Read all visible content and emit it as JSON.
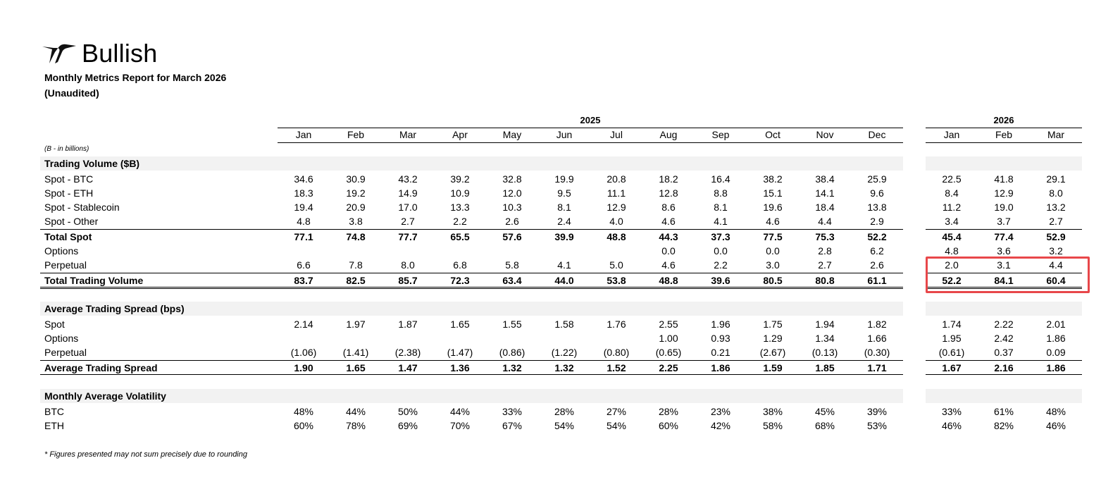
{
  "brand": {
    "name": "Bullish"
  },
  "report": {
    "title": "Monthly Metrics Report for March 2026",
    "subtitle": "(Unaudited)",
    "units_note": "(B - in billions)",
    "footnote": "* Figures presented may not sum precisely due to rounding"
  },
  "years": {
    "y2025": "2025",
    "y2026": "2026"
  },
  "months_2025": [
    "Jan",
    "Feb",
    "Mar",
    "Apr",
    "May",
    "Jun",
    "Jul",
    "Aug",
    "Sep",
    "Oct",
    "Nov",
    "Dec"
  ],
  "months_2026": [
    "Jan",
    "Feb",
    "Mar"
  ],
  "sections": {
    "trading_volume": "Trading Volume ($B)",
    "spread": "Average Trading Spread (bps)",
    "volatility": "Monthly Average Volatility"
  },
  "rows": {
    "spot_btc": {
      "label": "Spot - BTC",
      "v2025": [
        "34.6",
        "30.9",
        "43.2",
        "39.2",
        "32.8",
        "19.9",
        "20.8",
        "18.2",
        "16.4",
        "38.2",
        "38.4",
        "25.9"
      ],
      "v2026": [
        "22.5",
        "41.8",
        "29.1"
      ]
    },
    "spot_eth": {
      "label": "Spot - ETH",
      "v2025": [
        "18.3",
        "19.2",
        "14.9",
        "10.9",
        "12.0",
        "9.5",
        "11.1",
        "12.8",
        "8.8",
        "15.1",
        "14.1",
        "9.6"
      ],
      "v2026": [
        "8.4",
        "12.9",
        "8.0"
      ]
    },
    "spot_stable": {
      "label": "Spot - Stablecoin",
      "v2025": [
        "19.4",
        "20.9",
        "17.0",
        "13.3",
        "10.3",
        "8.1",
        "12.9",
        "8.6",
        "8.1",
        "19.6",
        "18.4",
        "13.8"
      ],
      "v2026": [
        "11.2",
        "19.0",
        "13.2"
      ]
    },
    "spot_other": {
      "label": "Spot - Other",
      "v2025": [
        "4.8",
        "3.8",
        "2.7",
        "2.2",
        "2.6",
        "2.4",
        "4.0",
        "4.6",
        "4.1",
        "4.6",
        "4.4",
        "2.9"
      ],
      "v2026": [
        "3.4",
        "3.7",
        "2.7"
      ]
    },
    "total_spot": {
      "label": "Total Spot",
      "v2025": [
        "77.1",
        "74.8",
        "77.7",
        "65.5",
        "57.6",
        "39.9",
        "48.8",
        "44.3",
        "37.3",
        "77.5",
        "75.3",
        "52.2"
      ],
      "v2026": [
        "45.4",
        "77.4",
        "52.9"
      ]
    },
    "options_vol": {
      "label": "Options",
      "v2025": [
        "",
        "",
        "",
        "",
        "",
        "",
        "",
        "0.0",
        "0.0",
        "0.0",
        "2.8",
        "6.2"
      ],
      "v2026": [
        "4.8",
        "3.6",
        "3.2"
      ]
    },
    "perp_vol": {
      "label": "Perpetual",
      "v2025": [
        "6.6",
        "7.8",
        "8.0",
        "6.8",
        "5.8",
        "4.1",
        "5.0",
        "4.6",
        "2.2",
        "3.0",
        "2.7",
        "2.6"
      ],
      "v2026": [
        "2.0",
        "3.1",
        "4.4"
      ]
    },
    "total_vol": {
      "label": "Total Trading Volume",
      "v2025": [
        "83.7",
        "82.5",
        "85.7",
        "72.3",
        "63.4",
        "44.0",
        "53.8",
        "48.8",
        "39.6",
        "80.5",
        "80.8",
        "61.1"
      ],
      "v2026": [
        "52.2",
        "84.1",
        "60.4"
      ]
    },
    "spread_spot": {
      "label": "Spot",
      "v2025": [
        "2.14",
        "1.97",
        "1.87",
        "1.65",
        "1.55",
        "1.58",
        "1.76",
        "2.55",
        "1.96",
        "1.75",
        "1.94",
        "1.82"
      ],
      "v2026": [
        "1.74",
        "2.22",
        "2.01"
      ]
    },
    "spread_options": {
      "label": "Options",
      "v2025": [
        "",
        "",
        "",
        "",
        "",
        "",
        "",
        "1.00",
        "0.93",
        "1.29",
        "1.34",
        "1.66"
      ],
      "v2026": [
        "1.95",
        "2.42",
        "1.86"
      ]
    },
    "spread_perp": {
      "label": "Perpetual",
      "v2025": [
        "(1.06)",
        "(1.41)",
        "(2.38)",
        "(1.47)",
        "(0.86)",
        "(1.22)",
        "(0.80)",
        "(0.65)",
        "0.21",
        "(2.67)",
        "(0.13)",
        "(0.30)"
      ],
      "v2026": [
        "(0.61)",
        "0.37",
        "0.09"
      ]
    },
    "spread_avg": {
      "label": "Average Trading Spread",
      "v2025": [
        "1.90",
        "1.65",
        "1.47",
        "1.36",
        "1.32",
        "1.32",
        "1.52",
        "2.25",
        "1.86",
        "1.59",
        "1.85",
        "1.71"
      ],
      "v2026": [
        "1.67",
        "2.16",
        "1.86"
      ]
    },
    "vol_btc": {
      "label": "BTC",
      "v2025": [
        "48%",
        "44%",
        "50%",
        "44%",
        "33%",
        "28%",
        "27%",
        "28%",
        "23%",
        "38%",
        "45%",
        "39%"
      ],
      "v2026": [
        "33%",
        "61%",
        "48%"
      ]
    },
    "vol_eth": {
      "label": "ETH",
      "v2025": [
        "60%",
        "78%",
        "69%",
        "70%",
        "67%",
        "54%",
        "54%",
        "60%",
        "42%",
        "58%",
        "68%",
        "53%"
      ],
      "v2026": [
        "46%",
        "82%",
        "46%"
      ]
    }
  },
  "colors": {
    "highlight": "#e8474a",
    "band": "#f2f2f2"
  }
}
